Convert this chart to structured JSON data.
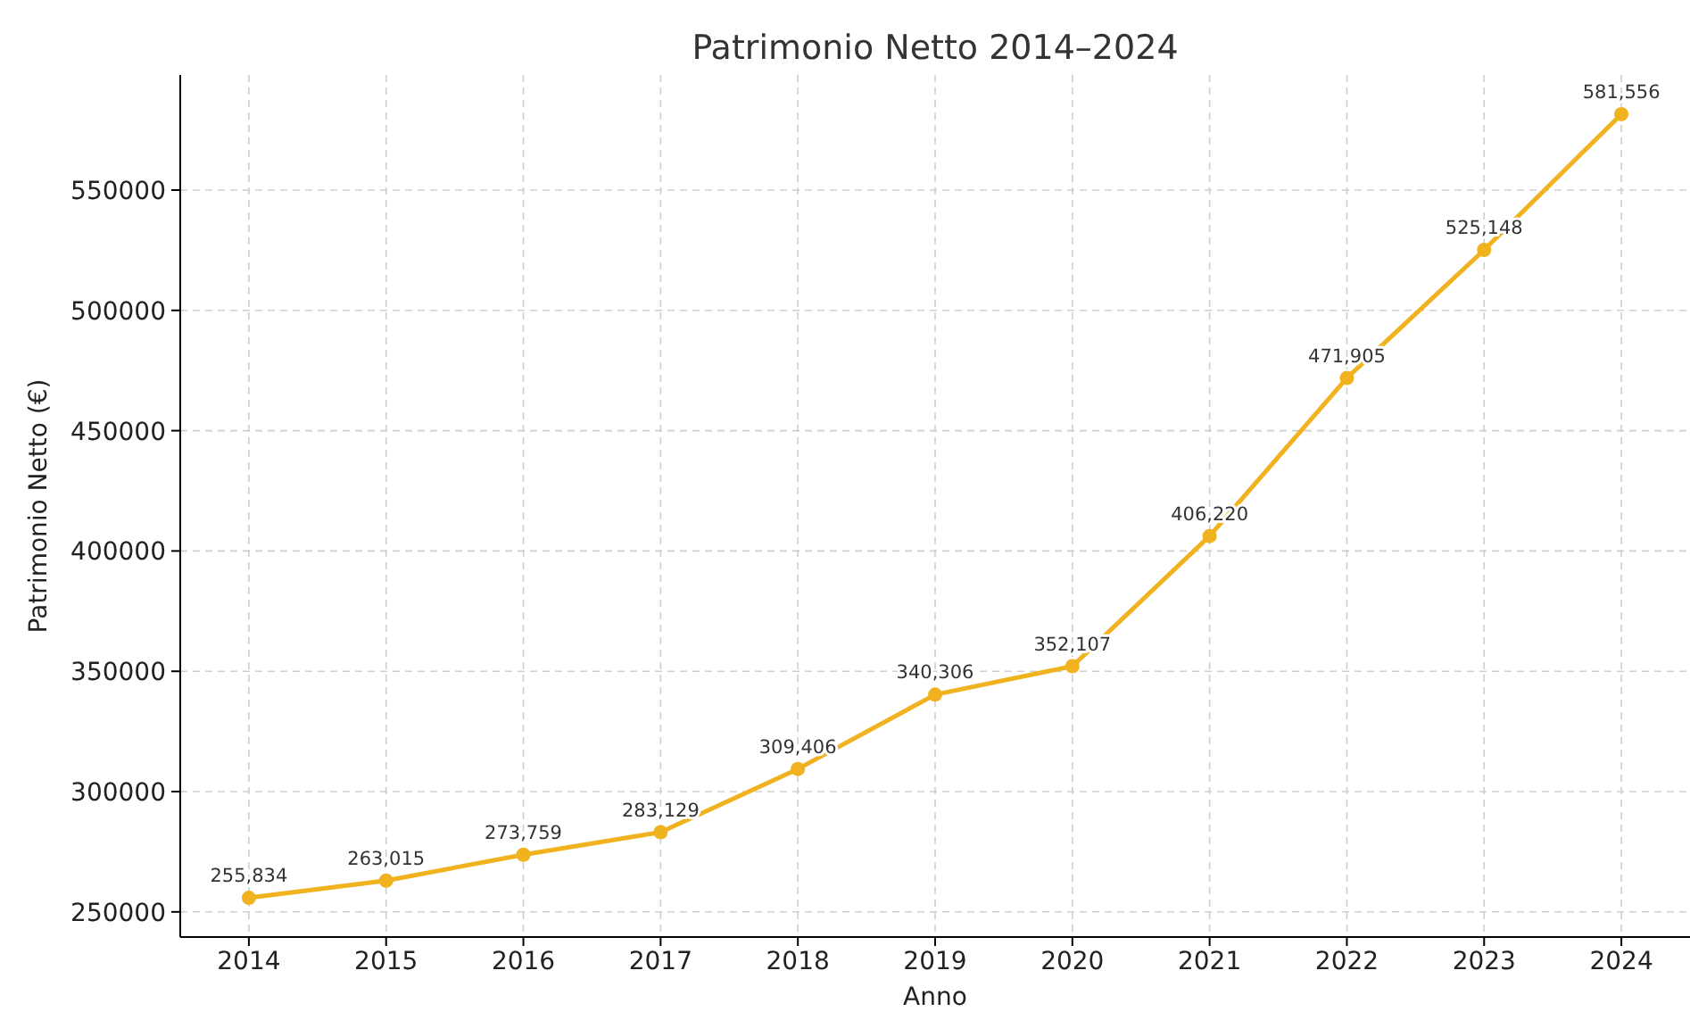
{
  "chart_data": {
    "type": "line",
    "title": "Patrimonio Netto 2014–2024",
    "xlabel": "Anno",
    "ylabel": "Patrimonio Netto (€)",
    "x": [
      2014,
      2015,
      2016,
      2017,
      2018,
      2019,
      2020,
      2021,
      2022,
      2023,
      2024
    ],
    "xlim": [
      2013.5,
      2024.5
    ],
    "xticks": [
      2014,
      2015,
      2016,
      2017,
      2018,
      2019,
      2020,
      2021,
      2022,
      2023,
      2024
    ],
    "ylim": [
      239548,
      597842
    ],
    "yticks": [
      250000,
      300000,
      350000,
      400000,
      450000,
      500000,
      550000
    ],
    "series": [
      {
        "color": "#f0b21e",
        "values": [
          255834,
          263015,
          273759,
          283129,
          309406,
          340306,
          352107,
          406220,
          471905,
          525148,
          581556
        ],
        "value_labels": [
          "255,834",
          "263,015",
          "273,759",
          "283,129",
          "309,406",
          "340,306",
          "352,107",
          "406,220",
          "471,905",
          "525,148",
          "581,556"
        ]
      }
    ],
    "grid": true,
    "marker": "circle",
    "line_style": "solid"
  }
}
